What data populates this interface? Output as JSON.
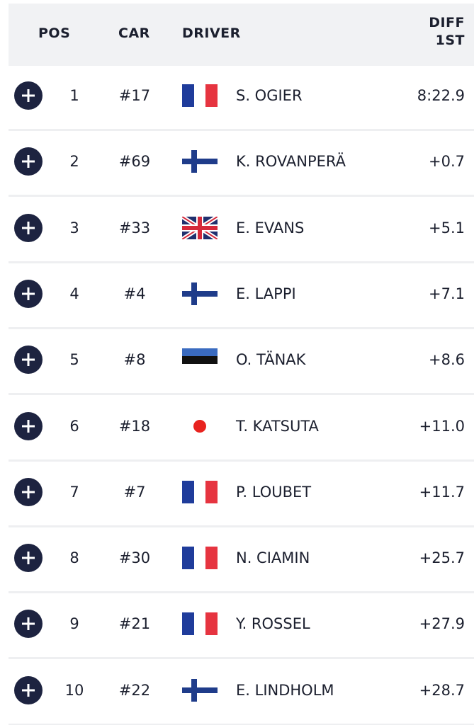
{
  "header": {
    "pos": "POS",
    "car": "CAR",
    "driver": "DRIVER",
    "diff": "DIFF 1ST"
  },
  "table": {
    "rows": [
      {
        "pos": 1,
        "car": "#17",
        "driver": "S. OGIER",
        "diff": "8:22.9"
      },
      {
        "pos": 2,
        "car": "#69",
        "driver": "K. ROVANPERÄ",
        "diff": "+0.7"
      },
      {
        "pos": 3,
        "car": "#33",
        "driver": "E. EVANS",
        "diff": "+5.1"
      },
      {
        "pos": 4,
        "car": "#4",
        "driver": "E. LAPPI",
        "diff": "+7.1"
      },
      {
        "pos": 5,
        "car": "#8",
        "driver": "O. TÄNAK",
        "diff": "+8.6"
      },
      {
        "pos": 6,
        "car": "#18",
        "driver": "T. KATSUTA",
        "diff": "+11.0"
      },
      {
        "pos": 7,
        "car": "#7",
        "driver": "P. LOUBET",
        "diff": "+11.7"
      },
      {
        "pos": 8,
        "car": "#30",
        "driver": "N. CIAMIN",
        "diff": "+25.7"
      },
      {
        "pos": 9,
        "car": "#21",
        "driver": "Y. ROSSEL",
        "diff": "+27.9"
      },
      {
        "pos": 10,
        "car": "#22",
        "driver": "E. LINDHOLM",
        "diff": "+28.7"
      }
    ]
  }
}
